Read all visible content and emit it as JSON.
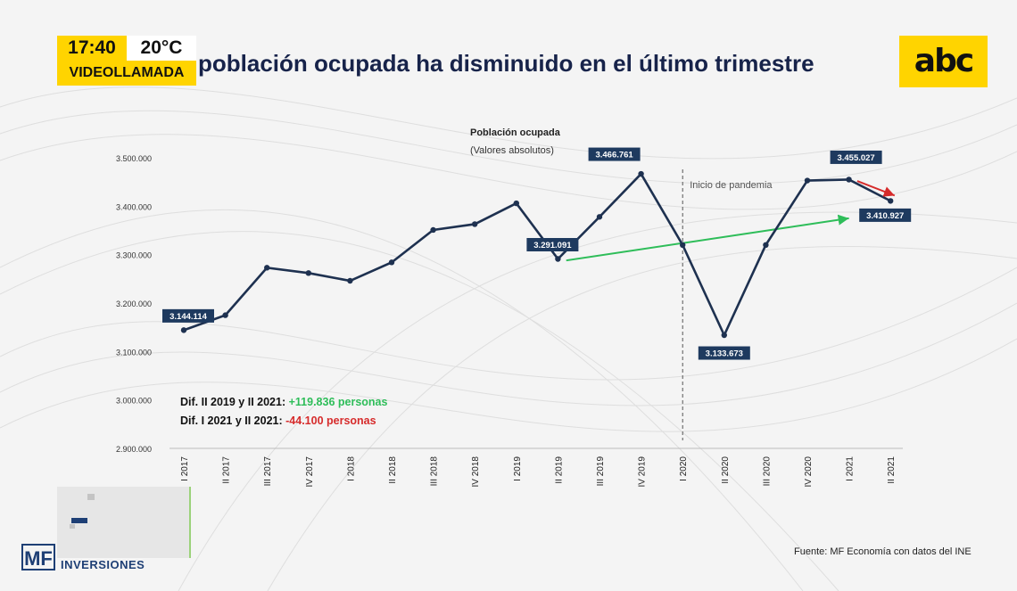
{
  "overlay": {
    "time": "17:40",
    "temperature": "20°C",
    "label": "VIDEOLLAMADA"
  },
  "headline": "población ocupada ha disminuido en el último trimestre",
  "logo_text": "abc",
  "brand": {
    "mf_mark": "MF",
    "mf_name": "INVERSIONES"
  },
  "source": "Fuente: MF Economía con datos del INE",
  "colors": {
    "series": "#1e3150",
    "label_bg": "#1e3a5f",
    "green": "#2ebd59",
    "red": "#d62b2b",
    "yellow": "#ffd400"
  },
  "chart_data": {
    "type": "line",
    "title": "Población ocupada",
    "subtitle": "(Valores absolutos)",
    "xlabel": "",
    "ylabel": "",
    "ylim": [
      2900000,
      3500000
    ],
    "yticks": [
      2900000,
      3000000,
      3100000,
      3200000,
      3300000,
      3400000,
      3500000
    ],
    "ytick_labels": [
      "2.900.000",
      "3.000.000",
      "3.100.000",
      "3.200.000",
      "3.300.000",
      "3.400.000",
      "3.500.000"
    ],
    "categories": [
      "I 2017",
      "II 2017",
      "III 2017",
      "IV 2017",
      "I 2018",
      "II 2018",
      "III 2018",
      "IV 2018",
      "I 2019",
      "II 2019",
      "III 2019",
      "IV 2019",
      "I 2020",
      "II 2020",
      "III 2020",
      "IV 2020",
      "I 2021",
      "II 2021"
    ],
    "series": [
      {
        "name": "Población ocupada",
        "values": [
          3144114,
          3175000,
          3273000,
          3262000,
          3246000,
          3284000,
          3351000,
          3363000,
          3406000,
          3291091,
          3378000,
          3466761,
          3320000,
          3133673,
          3320000,
          3453000,
          3455027,
          3410927
        ]
      }
    ],
    "data_labels": [
      {
        "index": 0,
        "text": "3.144.114"
      },
      {
        "index": 9,
        "text": "3.291.091"
      },
      {
        "index": 11,
        "text": "3.466.761"
      },
      {
        "index": 13,
        "text": "3.133.673"
      },
      {
        "index": 16,
        "text": "3.455.027"
      },
      {
        "index": 17,
        "text": "3.410.927"
      }
    ],
    "annotations": {
      "pandemic_label": "Inicio de pandemia",
      "pandemic_index": 12,
      "diff1_prefix": "Dif. II 2019 y II 2021: ",
      "diff1_value": "+119.836 personas",
      "diff2_prefix": "Dif. I 2021 y II 2021: ",
      "diff2_value": "-44.100 personas",
      "trend_arrow": {
        "from_index": 9.2,
        "from_value": 3288000,
        "to_index": 16,
        "to_value": 3375000
      },
      "drop_arrow": {
        "from_index": 16.2,
        "from_value": 3452000,
        "to_index": 17.1,
        "to_value": 3422000
      }
    }
  }
}
